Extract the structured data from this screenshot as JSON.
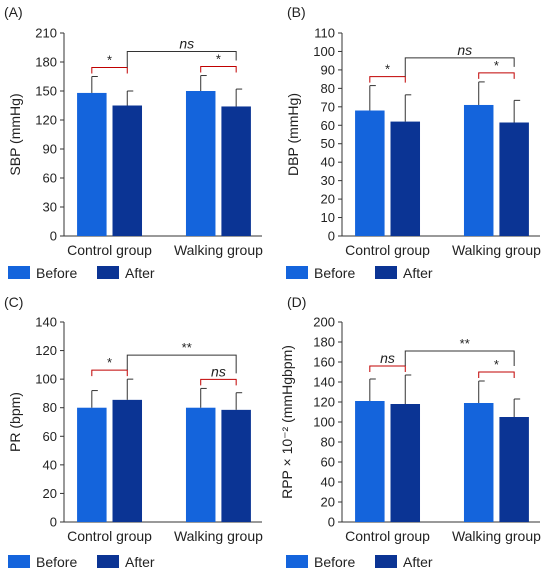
{
  "figure": {
    "colors": {
      "before": "#1464dc",
      "after": "#0b3494"
    },
    "legend": {
      "before": "Before",
      "after": "After"
    }
  },
  "chart_data": [
    {
      "type": "bar",
      "panel_label": "(A)",
      "ylabel": "SBP (mmHg)",
      "categories": [
        "Control group",
        "Walking group"
      ],
      "ylim": [
        0,
        210
      ],
      "yticks": [
        0,
        30,
        60,
        90,
        120,
        150,
        180,
        210
      ],
      "series": [
        {
          "name": "Before",
          "values": [
            148,
            150
          ],
          "errors": [
            17,
            16
          ]
        },
        {
          "name": "After",
          "values": [
            135,
            134
          ],
          "errors": [
            15,
            18
          ]
        }
      ],
      "within_significance": [
        "*",
        "*"
      ],
      "between_significance": "ns",
      "legend_position": "bottom"
    },
    {
      "type": "bar",
      "panel_label": "(B)",
      "ylabel": "DBP (mmHg)",
      "categories": [
        "Control group",
        "Walking group"
      ],
      "ylim": [
        0,
        110
      ],
      "yticks": [
        0,
        10,
        20,
        30,
        40,
        50,
        60,
        70,
        80,
        90,
        100,
        110
      ],
      "series": [
        {
          "name": "Before",
          "values": [
            68,
            71
          ],
          "errors": [
            13.5,
            12.5
          ]
        },
        {
          "name": "After",
          "values": [
            62,
            61.5
          ],
          "errors": [
            14.5,
            12
          ]
        }
      ],
      "within_significance": [
        "*",
        "*"
      ],
      "between_significance": "ns",
      "legend_position": "bottom"
    },
    {
      "type": "bar",
      "panel_label": "(C)",
      "ylabel": "PR (bpm)",
      "categories": [
        "Control group",
        "Walking group"
      ],
      "ylim": [
        0,
        140
      ],
      "yticks": [
        0,
        20,
        40,
        60,
        80,
        100,
        120,
        140
      ],
      "series": [
        {
          "name": "Before",
          "values": [
            80,
            80
          ],
          "errors": [
            12,
            13.5
          ]
        },
        {
          "name": "After",
          "values": [
            85.5,
            78.5
          ],
          "errors": [
            14.5,
            12
          ]
        }
      ],
      "within_significance": [
        "*",
        "ns"
      ],
      "between_significance": "**",
      "legend_position": "bottom"
    },
    {
      "type": "bar",
      "panel_label": "(D)",
      "ylabel": "RPP × 10⁻² (mmHgbpm)",
      "categories": [
        "Control group",
        "Walking group"
      ],
      "ylim": [
        0,
        200
      ],
      "yticks": [
        0,
        20,
        40,
        60,
        80,
        100,
        120,
        140,
        160,
        180,
        200
      ],
      "series": [
        {
          "name": "Before",
          "values": [
            121,
            119
          ],
          "errors": [
            22,
            22
          ]
        },
        {
          "name": "After",
          "values": [
            118,
            105
          ],
          "errors": [
            29,
            18
          ]
        }
      ],
      "within_significance": [
        "ns",
        "*"
      ],
      "between_significance": "**",
      "legend_position": "bottom"
    }
  ]
}
